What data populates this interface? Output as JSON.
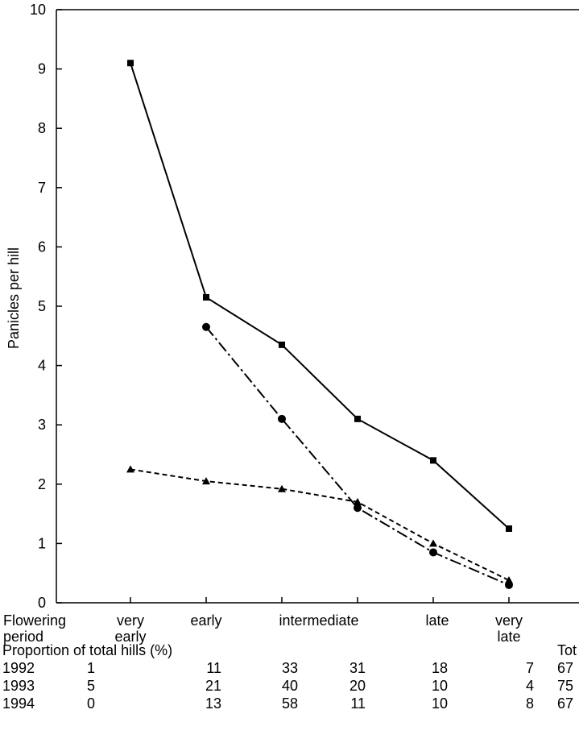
{
  "chart_data": {
    "type": "line",
    "title": "",
    "xlabel": "",
    "ylabel": "Panicles per hill",
    "ylim": [
      0,
      10
    ],
    "yticks": [
      "0",
      "1",
      "2",
      "3",
      "4",
      "5",
      "6",
      "7",
      "8",
      "9",
      "10"
    ],
    "row_label": [
      "Flowering",
      "period"
    ],
    "categories": [
      [
        "very",
        "early"
      ],
      [
        "early"
      ],
      [
        "intermediate"
      ],
      [
        ""
      ],
      [
        "late"
      ],
      [
        "very",
        "late"
      ]
    ],
    "series": [
      {
        "marker": "square",
        "dash": "solid",
        "values": [
          9.1,
          5.15,
          4.35,
          3.1,
          2.4,
          1.25
        ]
      },
      {
        "marker": "circle",
        "dash": "dashdot",
        "values": [
          null,
          4.65,
          3.1,
          1.6,
          0.85,
          0.3
        ]
      },
      {
        "marker": "triangle",
        "dash": "dashed",
        "values": [
          2.25,
          2.05,
          1.92,
          1.7,
          1.0,
          0.38
        ]
      }
    ],
    "grid": false
  },
  "table": {
    "heading": "Proportion of total hills (%)",
    "total_label": "Tot",
    "rows": [
      {
        "year": "1992",
        "values": [
          "1",
          "11",
          "33",
          "31",
          "18",
          "7"
        ],
        "total": "67"
      },
      {
        "year": "1993",
        "values": [
          "5",
          "21",
          "40",
          "20",
          "10",
          "4"
        ],
        "total": "75"
      },
      {
        "year": "1994",
        "values": [
          "0",
          "13",
          "58",
          "11",
          "10",
          "8"
        ],
        "total": "67"
      }
    ]
  }
}
